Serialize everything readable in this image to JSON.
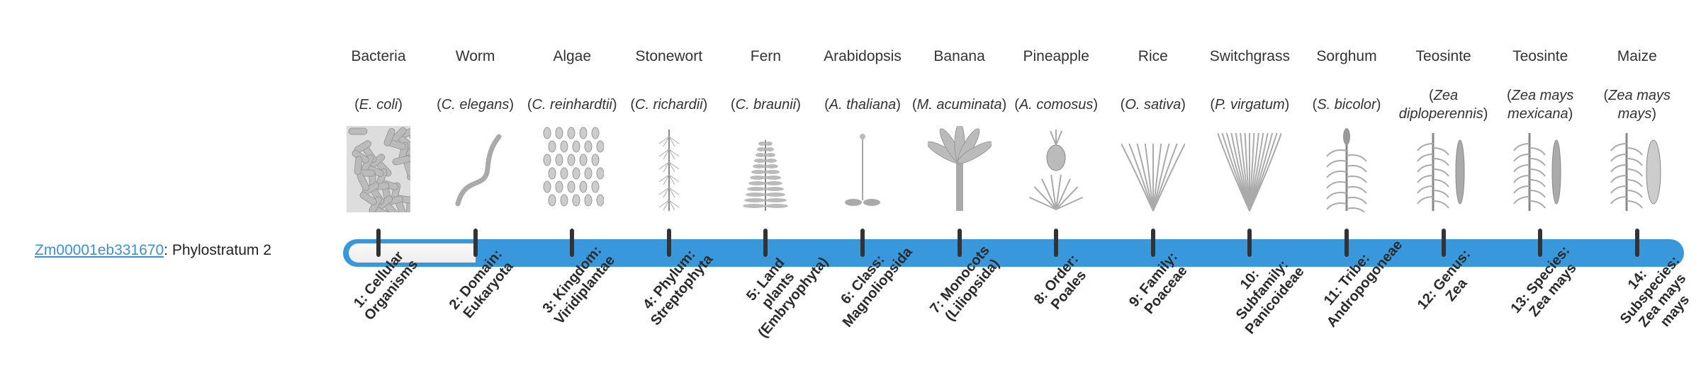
{
  "gene": {
    "id": "Zm00001eb331670",
    "suffix": ": Phylostratum 2"
  },
  "phylostratum": 2,
  "colors": {
    "bar": "#3898db",
    "fill": "#f5f5f5",
    "tick": "#333333",
    "link": "#3a8fd8"
  },
  "stages": [
    {
      "name": "Bacteria",
      "sp_open": "(",
      "sp": "E. coli",
      "sp_close": ")",
      "icon": "bacteria",
      "label": "1: Cellular Organisms"
    },
    {
      "name": "Worm",
      "sp_open": "(",
      "sp": "C. elegans",
      "sp_close": ")",
      "icon": "worm",
      "label": "2: Domain: Eukaryota"
    },
    {
      "name": "Algae",
      "sp_open": "(",
      "sp": "C. reinhardtii",
      "sp_close": ")",
      "icon": "algae",
      "label": "3: Kingdom: Viridiplantae"
    },
    {
      "name": "Stonewort",
      "sp_open": "(",
      "sp": "C. richardii",
      "sp_close": ")",
      "icon": "stonewort",
      "label": "4: Phylum: Streptophyta"
    },
    {
      "name": "Fern",
      "sp_open": "(",
      "sp": "C. braunii",
      "sp_close": ")",
      "icon": "fern",
      "label": "5: Land plants (Embryophyta)"
    },
    {
      "name": "Arabidopsis",
      "sp_open": "(",
      "sp": "A. thaliana",
      "sp_close": ")",
      "icon": "arabidopsis",
      "label": "6: Class: Magnoliopsida"
    },
    {
      "name": "Banana",
      "sp_open": "(",
      "sp": "M. acuminata",
      "sp_close": ")",
      "icon": "banana",
      "label": "7: Monocots (Liliopsida)"
    },
    {
      "name": "Pineapple",
      "sp_open": "(",
      "sp": "A. comosus",
      "sp_close": ")",
      "icon": "pineapple",
      "label": "8: Order: Poales"
    },
    {
      "name": "Rice",
      "sp_open": "(",
      "sp": "O. sativa",
      "sp_close": ")",
      "icon": "rice",
      "label": "9: Family: Poaceae"
    },
    {
      "name": "Switchgrass",
      "sp_open": "(",
      "sp": "P. virgatum",
      "sp_close": ")",
      "icon": "switchgrass",
      "label": "10: Subfamily: Panicoideae"
    },
    {
      "name": "Sorghum",
      "sp_open": "(",
      "sp": "S. bicolor",
      "sp_close": ")",
      "icon": "sorghum",
      "label": "11: Tribe: Andropogoneae"
    },
    {
      "name": "Teosinte",
      "sp_open": "(",
      "sp": "Zea diploperennis",
      "sp_close": ")",
      "icon": "teosinte",
      "label": "12: Genus: Zea"
    },
    {
      "name": "Teosinte",
      "sp_open": "(",
      "sp": "Zea mays mexicana",
      "sp_close": ")",
      "icon": "teosinte",
      "label": "13: Species: Zea mays"
    },
    {
      "name": "Maize",
      "sp_open": "(",
      "sp": "Zea mays mays",
      "sp_close": ")",
      "icon": "maize",
      "label": "14: Subspecies: Zea mays mays"
    }
  ]
}
